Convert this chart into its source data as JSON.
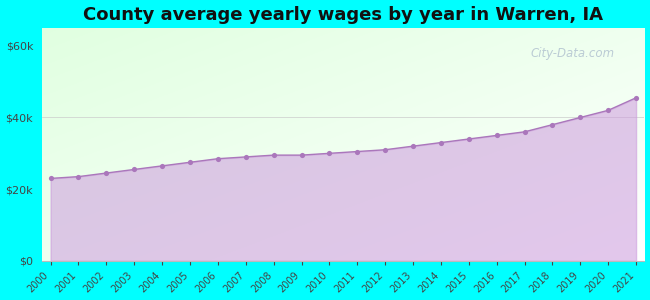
{
  "title": "County average yearly wages by year in Warren, IA",
  "years": [
    2000,
    2001,
    2002,
    2003,
    2004,
    2005,
    2006,
    2007,
    2008,
    2009,
    2010,
    2011,
    2012,
    2013,
    2014,
    2015,
    2016,
    2017,
    2018,
    2019,
    2020,
    2021
  ],
  "wages": [
    23000,
    23500,
    24500,
    25500,
    26500,
    27500,
    28500,
    29000,
    29500,
    29500,
    30000,
    30500,
    31000,
    32000,
    33000,
    34000,
    35000,
    36000,
    38000,
    40000,
    42000,
    45500
  ],
  "fill_color": "#cc99dd",
  "fill_alpha": 0.55,
  "line_color": "#aa77bb",
  "marker_color": "#aa77bb",
  "outer_bg": "#00ffff",
  "yticks": [
    0,
    20000,
    40000,
    60000
  ],
  "ylim": [
    0,
    65000
  ],
  "title_fontsize": 13,
  "watermark_text": "City-Data.com"
}
